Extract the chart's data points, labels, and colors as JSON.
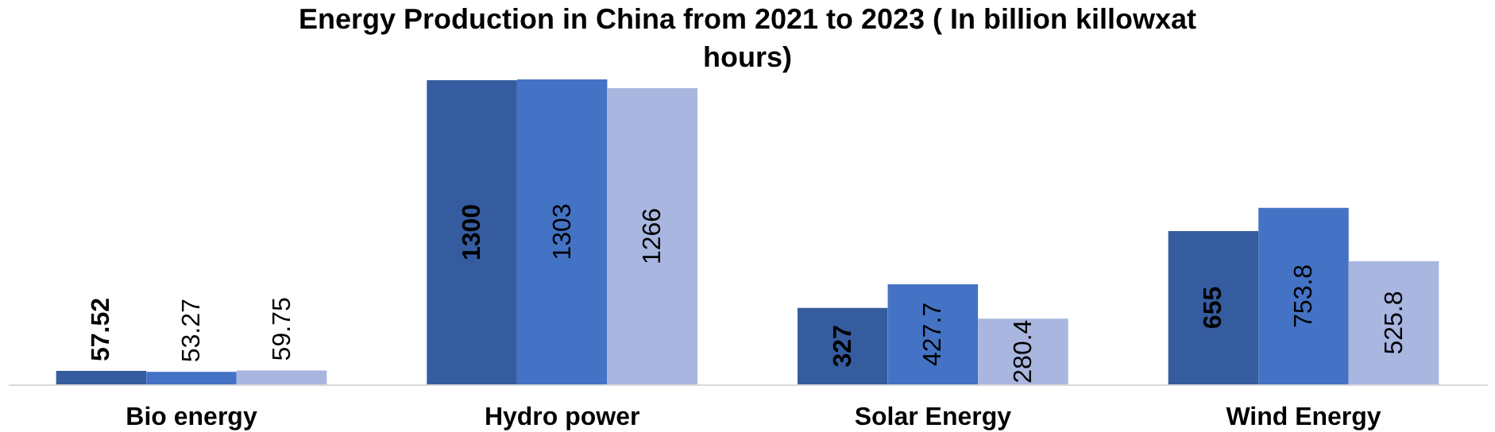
{
  "chart_data": {
    "type": "bar",
    "title": "Energy Production in China from 2021 to 2023 ( In billion killowxat hours)",
    "categories": [
      "Bio energy",
      "Hydro power",
      "Solar Energy",
      "Wind Energy"
    ],
    "series": [
      {
        "color": "#355c9f",
        "values": [
          57.52,
          1300,
          327,
          655
        ]
      },
      {
        "color": "#4472c4",
        "values": [
          53.27,
          1303,
          427.7,
          753.8
        ]
      },
      {
        "color": "#a9b6df",
        "values": [
          59.75,
          1266,
          280.4,
          525.8
        ]
      }
    ],
    "data_labels": true
  }
}
